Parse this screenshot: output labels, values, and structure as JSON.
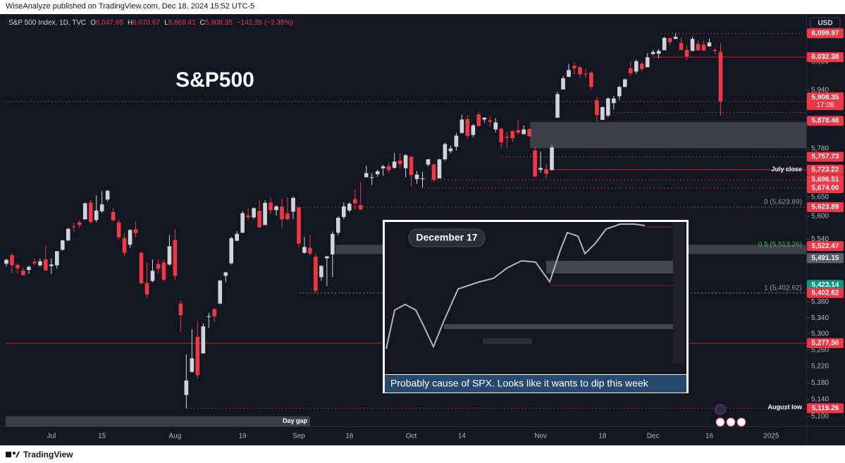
{
  "header": {
    "text": "WiseAnalyze published on TradingView.com, Dec 18, 2024 15:52 UTC-5"
  },
  "footer": {
    "brand": "TradingView"
  },
  "inset": {
    "title": "December 17",
    "caption": "Probably cause of SPX. Looks like it wants to dip this week"
  },
  "chart_data": {
    "type": "candlestick",
    "title": "S&P500",
    "symbol": "S&P 500 Index, 1D, TVC",
    "legend": [
      {
        "key": "O",
        "value": "6,047.65"
      },
      {
        "key": "H",
        "value": "6,070.67"
      },
      {
        "key": "L",
        "value": "5,869.41"
      },
      {
        "key": "C",
        "value": "5,908.35"
      }
    ],
    "change": "−142.26 (−2.35%)",
    "currency": "USD",
    "countdown": "17:08",
    "up_color": "#d1d4dc",
    "down_color": "#f23645",
    "log_scale": true,
    "grid": false,
    "ylim": [
      5076,
      6151
    ],
    "yticks": [
      {
        "value": 5100,
        "label": "5,100"
      },
      {
        "value": 5140,
        "label": "5,140"
      },
      {
        "value": 5180,
        "label": "5,180"
      },
      {
        "value": 5220,
        "label": "5,220"
      },
      {
        "value": 5260,
        "label": "5,260"
      },
      {
        "value": 5300,
        "label": "5,300"
      },
      {
        "value": 5340,
        "label": "5,340"
      },
      {
        "value": 5380,
        "label": "5,380"
      },
      {
        "value": 5540,
        "label": "5,540"
      },
      {
        "value": 5600,
        "label": "5,600"
      },
      {
        "value": 5650,
        "label": "5,650"
      },
      {
        "value": 5780,
        "label": "5,780"
      },
      {
        "value": 5940,
        "label": "5,940"
      },
      {
        "value": 6020,
        "label": "6,020"
      }
    ],
    "categories": [
      null,
      null,
      null,
      null,
      null,
      null,
      null,
      null,
      "Jul",
      null,
      null,
      null,
      null,
      null,
      null,
      null,
      null,
      "15",
      null,
      null,
      null,
      null,
      null,
      null,
      null,
      null,
      null,
      null,
      null,
      null,
      "Aug",
      null,
      null,
      null,
      null,
      null,
      null,
      null,
      null,
      null,
      null,
      null,
      "19",
      null,
      null,
      null,
      null,
      null,
      null,
      null,
      null,
      null,
      "Sep",
      null,
      null,
      null,
      null,
      null,
      null,
      null,
      null,
      "16",
      null,
      null,
      null,
      null,
      null,
      null,
      null,
      null,
      null,
      null,
      "Oct",
      null,
      null,
      null,
      null,
      null,
      null,
      null,
      null,
      "14",
      null,
      null,
      null,
      null,
      null,
      null,
      null,
      null,
      null,
      null,
      null,
      null,
      null,
      "Nov",
      null,
      null,
      null,
      null,
      null,
      null,
      null,
      null,
      null,
      null,
      "18",
      null,
      null,
      null,
      null,
      null,
      null,
      null,
      null,
      "Dec",
      null,
      null,
      null,
      null,
      null,
      null,
      null,
      null,
      null,
      "16",
      null,
      null,
      null,
      null,
      null,
      null,
      null,
      null,
      null,
      null,
      "2025",
      null,
      null,
      null,
      null,
      null,
      null
    ],
    "open": [
      5477,
      5499,
      5474,
      5459,
      5461,
      5482,
      5473,
      5488,
      5471,
      5473,
      5513,
      5537,
      5573,
      5584,
      5592,
      5636,
      5590,
      5613,
      5644,
      5611,
      5584,
      5543,
      5526,
      5566,
      5505,
      5428,
      5433,
      5476,
      5480,
      5475,
      5538,
      5376,
      5151,
      5207,
      5293,
      5252,
      5344,
      5362,
      5376,
      5446,
      5478,
      5536,
      5557,
      5602,
      5597,
      5614,
      5577,
      5636,
      5616,
      5625,
      5607,
      5612,
      5623,
      5505,
      5518,
      5495,
      5443,
      5491,
      5501,
      5557,
      5598,
      5615,
      5645,
      5629,
      5703,
      5702,
      5711,
      5727,
      5733,
      5728,
      5748,
      5727,
      5758,
      5698,
      5699,
      5737,
      5737,
      5700,
      5751,
      5773,
      5785,
      5822,
      5860,
      5817,
      5873,
      5859,
      5857,
      5832,
      5834,
      5812,
      5827,
      5830,
      5819,
      5833,
      5775,
      5723,
      5725,
      5722,
      5864,
      5942,
      5977,
      6008,
      6004,
      5986,
      5989,
      5912,
      5858,
      5870,
      5904,
      5923,
      5949,
      6001,
      5992,
      6014,
      6004,
      6041,
      6042,
      6052,
      6086,
      6084,
      6072,
      6053,
      6050,
      6070,
      6068,
      6063,
      6053,
      6047.65,
      null,
      null,
      null,
      null,
      null,
      null,
      null,
      null,
      null,
      null,
      null,
      null,
      null,
      null,
      null
    ],
    "high": [
      5490,
      5505,
      5478,
      5467,
      5472,
      5490,
      5490,
      5524,
      5490,
      5510,
      5539,
      5570,
      5583,
      5590,
      5636,
      5642,
      5655,
      5666,
      5669,
      5622,
      5590,
      5557,
      5566,
      5586,
      5508,
      5480,
      5488,
      5487,
      5487,
      5551,
      5567,
      5383,
      5250,
      5312,
      5331,
      5327,
      5353,
      5364,
      5436,
      5456,
      5546,
      5561,
      5614,
      5621,
      5623,
      5643,
      5642,
      5651,
      5629,
      5647,
      5651,
      5651,
      5624,
      5546,
      5552,
      5502,
      5474,
      5497,
      5560,
      5600,
      5636,
      5637,
      5671,
      5690,
      5734,
      5714,
      5723,
      5736,
      5741,
      5768,
      5767,
      5765,
      5759,
      5720,
      5718,
      5752,
      5739,
      5752,
      5796,
      5788,
      5823,
      5872,
      5871,
      5847,
      5879,
      5866,
      5869,
      5863,
      5836,
      5825,
      5830,
      5858,
      5843,
      5834,
      5784,
      5772,
      5737,
      5790,
      5936,
      5980,
      6013,
      6018,
      6008,
      6000,
      5993,
      5922,
      5894,
      5920,
      5924,
      5953,
      5973,
      6021,
      6026,
      6020,
      6044,
      6053,
      6055,
      6090,
      6089,
      6099.97,
      6088,
      6066,
      6090,
      6079,
      6078,
      6085,
      6058,
      6070.67,
      null,
      null,
      null,
      null,
      null,
      null,
      null,
      null,
      null,
      null,
      null,
      null,
      null,
      null,
      null
    ],
    "low": [
      5470,
      5452,
      5452,
      5447,
      5451,
      5472,
      5469,
      5459,
      5451,
      5464,
      5510,
      5535,
      5560,
      5570,
      5591,
      5580,
      5584,
      5609,
      5639,
      5588,
      5540,
      5497,
      5517,
      5545,
      5425,
      5391,
      5430,
      5451,
      5433,
      5472,
      5436,
      5306,
      5119.26,
      5205,
      5191,
      5252,
      5315,
      5330,
      5374,
      5430,
      5475,
      5536,
      5556,
      5590,
      5593,
      5570,
      5577,
      5606,
      5602,
      5568,
      5590,
      5593,
      5520,
      5503,
      5498,
      5402.62,
      5434,
      5420,
      5443,
      5550,
      5592,
      5610,
      5617,
      5615,
      5703,
      5682,
      5704,
      5707,
      5715,
      5727,
      5726,
      5703,
      5678,
      5686,
      5675,
      5732,
      5690,
      5700,
      5747,
      5767,
      5775,
      5822,
      5808,
      5810,
      5840,
      5850,
      5839,
      5824,
      5782,
      5782,
      5798,
      5818,
      5818,
      5813,
      5703,
      5715,
      5700,
      5722,
      5864,
      5942,
      5977,
      5984,
      5974,
      5974,
      5942,
      5853,
      5858,
      5865,
      5887,
      5913,
      5948,
      5980,
      5985,
      5993,
      6004,
      6039,
      6029,
      6052,
      6066,
      6084,
      6052,
      6024,
      6050,
      6051,
      6051,
      6062,
      6040,
      5869.41,
      null,
      null,
      null,
      null,
      null,
      null,
      null,
      null,
      null,
      null,
      null,
      null,
      null,
      null,
      null
    ],
    "close": [
      5487,
      5473,
      5465,
      5448,
      5469,
      5478,
      5483,
      5460,
      5475,
      5509,
      5537,
      5567,
      5572,
      5577,
      5634,
      5585,
      5615,
      5631,
      5667,
      5589,
      5545,
      5505,
      5564,
      5556,
      5427,
      5399,
      5459,
      5464,
      5436,
      5522,
      5446,
      5347,
      5186,
      5240,
      5199,
      5319,
      5344,
      5344,
      5434,
      5455,
      5543,
      5554,
      5608,
      5597,
      5621,
      5571,
      5635,
      5616,
      5626,
      5592,
      5592,
      5648,
      5529,
      5520,
      5503,
      5408,
      5471,
      5496,
      5554,
      5596,
      5626,
      5633,
      5634,
      5618,
      5714,
      5703,
      5719,
      5732,
      5722,
      5745,
      5738,
      5762,
      5709,
      5710,
      5700,
      5751,
      5696,
      5751,
      5792,
      5780,
      5815,
      5859,
      5815,
      5843,
      5841,
      5864,
      5853,
      5851,
      5797,
      5809,
      5808,
      5823,
      5832,
      5813,
      5705,
      5728,
      5712,
      5783,
      5929,
      5973,
      5996,
      6001,
      5984,
      5985,
      5949,
      5871,
      5893,
      5917,
      5917,
      5949,
      5970,
      5987,
      6021,
      5999,
      6032,
      6047,
      6050,
      6087,
      6075,
      6090,
      6053,
      6034,
      6084,
      6051,
      6051,
      6074,
      6050,
      5908.35,
      null,
      null,
      null,
      null,
      null,
      null,
      null,
      null,
      null,
      null,
      null,
      null,
      null,
      null,
      null
    ],
    "price_labels": [
      {
        "value": 6099.97,
        "label": "6,099.97",
        "color": "#f23645",
        "line": "dotted"
      },
      {
        "value": 6032.38,
        "label": "6,032.38",
        "color": "#f23645",
        "line": "solid"
      },
      {
        "value": 5908.35,
        "label": "5,908.35",
        "color": "#f23645",
        "line": "dotted"
      },
      {
        "value": 5878.46,
        "label": "5,878.46",
        "color": "#f23645",
        "line": "dotted"
      },
      {
        "value": 5757.73,
        "label": "5,757.73",
        "color": "#f23645",
        "line": "dotted"
      },
      {
        "value": 5723.22,
        "label": "5,723.22",
        "color": "#f23645",
        "line": "solid",
        "note": "July close"
      },
      {
        "value": 5696.51,
        "label": "5,696.51",
        "color": "#f23645",
        "line": "dotted"
      },
      {
        "value": 5674.0,
        "label": "5,674.00",
        "color": "#f23645",
        "line": "dotted"
      },
      {
        "value": 5623.89,
        "label": "5,623.89",
        "color": "#f23645",
        "line": "dotted"
      },
      {
        "value": 5522.47,
        "label": "5,522.47",
        "color": "#f23645"
      },
      {
        "value": 5491.15,
        "label": "5,491.15",
        "color": "#5d606b"
      },
      {
        "value": 5423.14,
        "label": "5,423.14",
        "color": "#089981"
      },
      {
        "value": 5402.62,
        "label": "5,402.62",
        "color": "#f23645",
        "line": "dotted"
      },
      {
        "value": 5277.5,
        "label": "5,277.50",
        "color": "#f23645",
        "line": "solid"
      },
      {
        "value": 5119.26,
        "label": "5,119.26",
        "color": "#f23645",
        "line": "dotted",
        "note": "August low"
      }
    ],
    "zones": [
      {
        "from": 5781,
        "to": 5852,
        "color": "#434651"
      },
      {
        "from": 5502,
        "to": 5526,
        "color": "#434651"
      },
      {
        "from": 5076,
        "to": 5100,
        "color": "#434651",
        "label": "Day gap"
      }
    ],
    "fib": [
      {
        "value": 5623.89,
        "label": "0 (5,623.89)",
        "color": "#9598a1"
      },
      {
        "value": 5513.26,
        "label": "0.5 (5,513.26)",
        "color": "#4caf50"
      },
      {
        "value": 5402.62,
        "label": "1 (5,402.62)",
        "color": "#9598a1"
      }
    ]
  }
}
